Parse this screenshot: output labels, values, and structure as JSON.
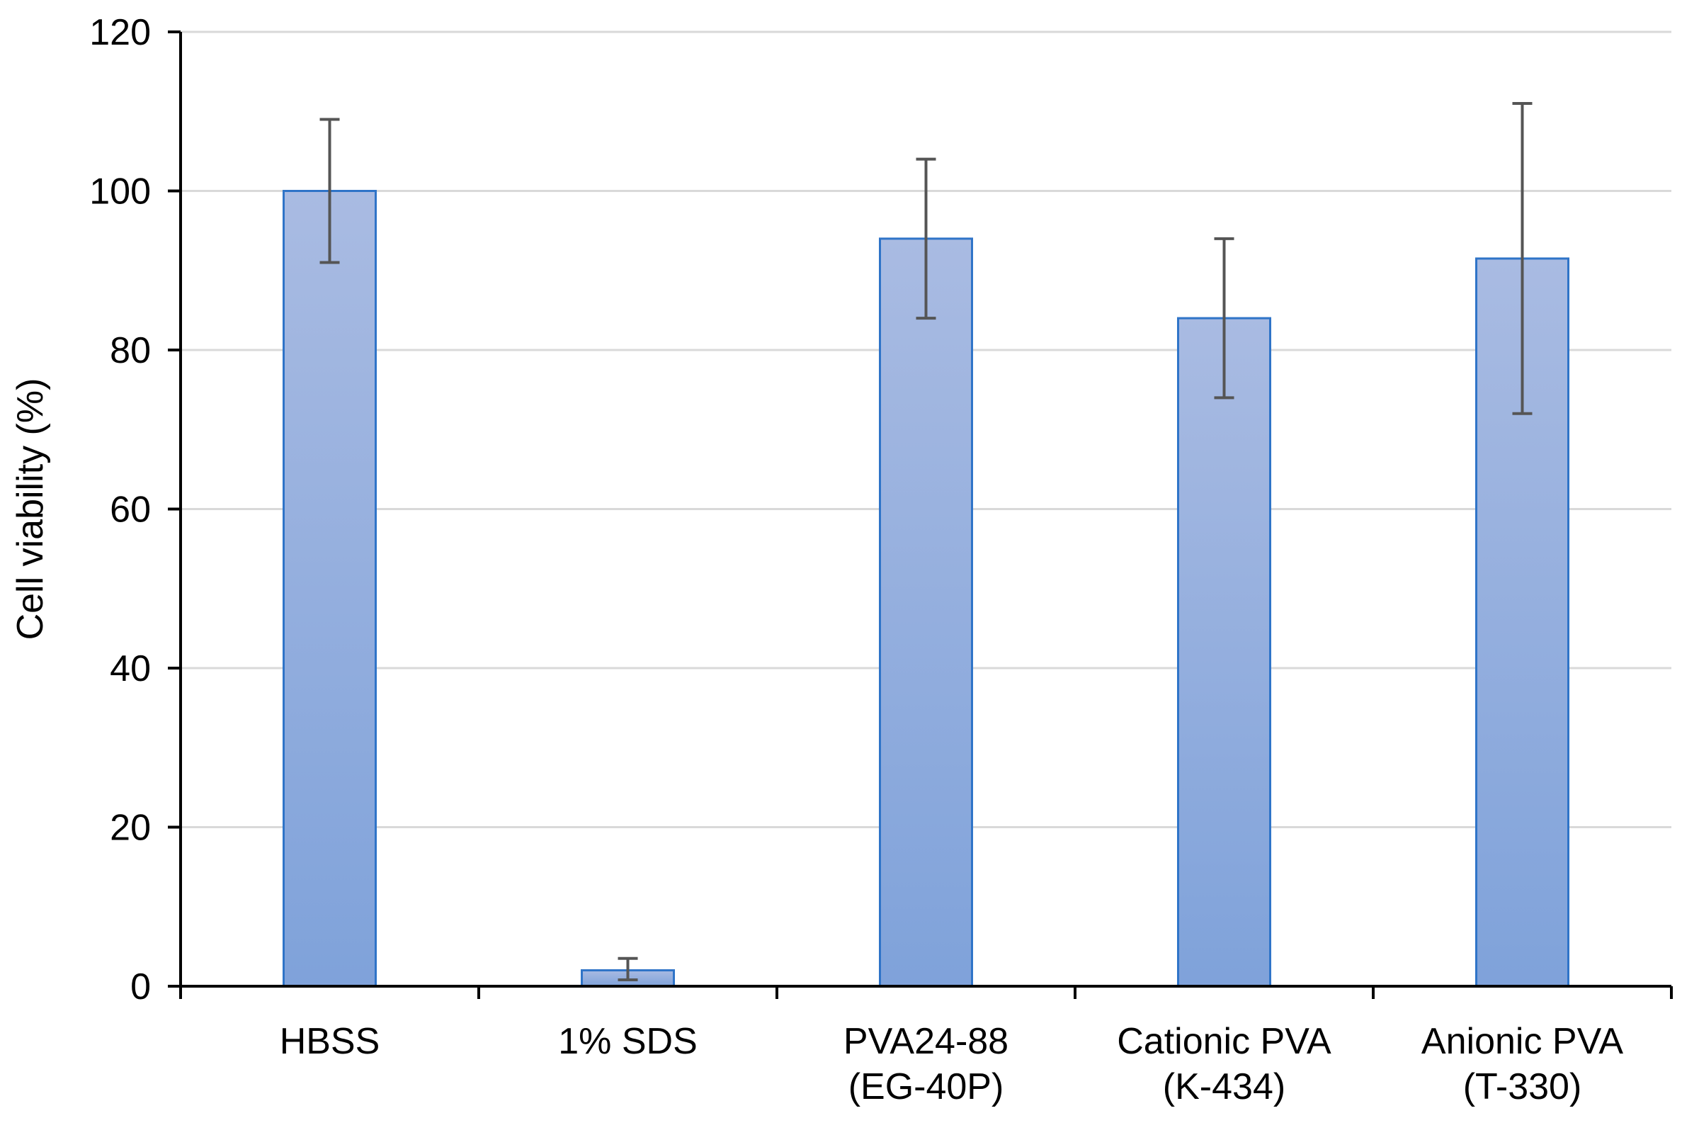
{
  "chart_data": {
    "type": "bar",
    "title": "",
    "xlabel": "",
    "ylabel": "Cell viability (%)",
    "ylim": [
      0,
      120
    ],
    "yticks": [
      0,
      20,
      40,
      60,
      80,
      100,
      120
    ],
    "grid": true,
    "categories": [
      [
        "HBSS"
      ],
      [
        "1% SDS"
      ],
      [
        "PVA24-88",
        "(EG-40P)"
      ],
      [
        "Cationic PVA",
        "(K-434)"
      ],
      [
        "Anionic PVA",
        "(T-330)"
      ]
    ],
    "values": [
      100,
      2,
      94,
      84,
      91.5
    ],
    "error_low": [
      91,
      0.8,
      84,
      74,
      72
    ],
    "error_high": [
      109,
      3.5,
      104,
      94,
      111
    ]
  },
  "colors": {
    "bar_top": "#a9bbe2",
    "bar_bottom": "#7fa2da",
    "bar_edge": "#2f74c8",
    "error_bar": "#555555",
    "grid": "#d9d9d9",
    "axis": "#000000"
  }
}
